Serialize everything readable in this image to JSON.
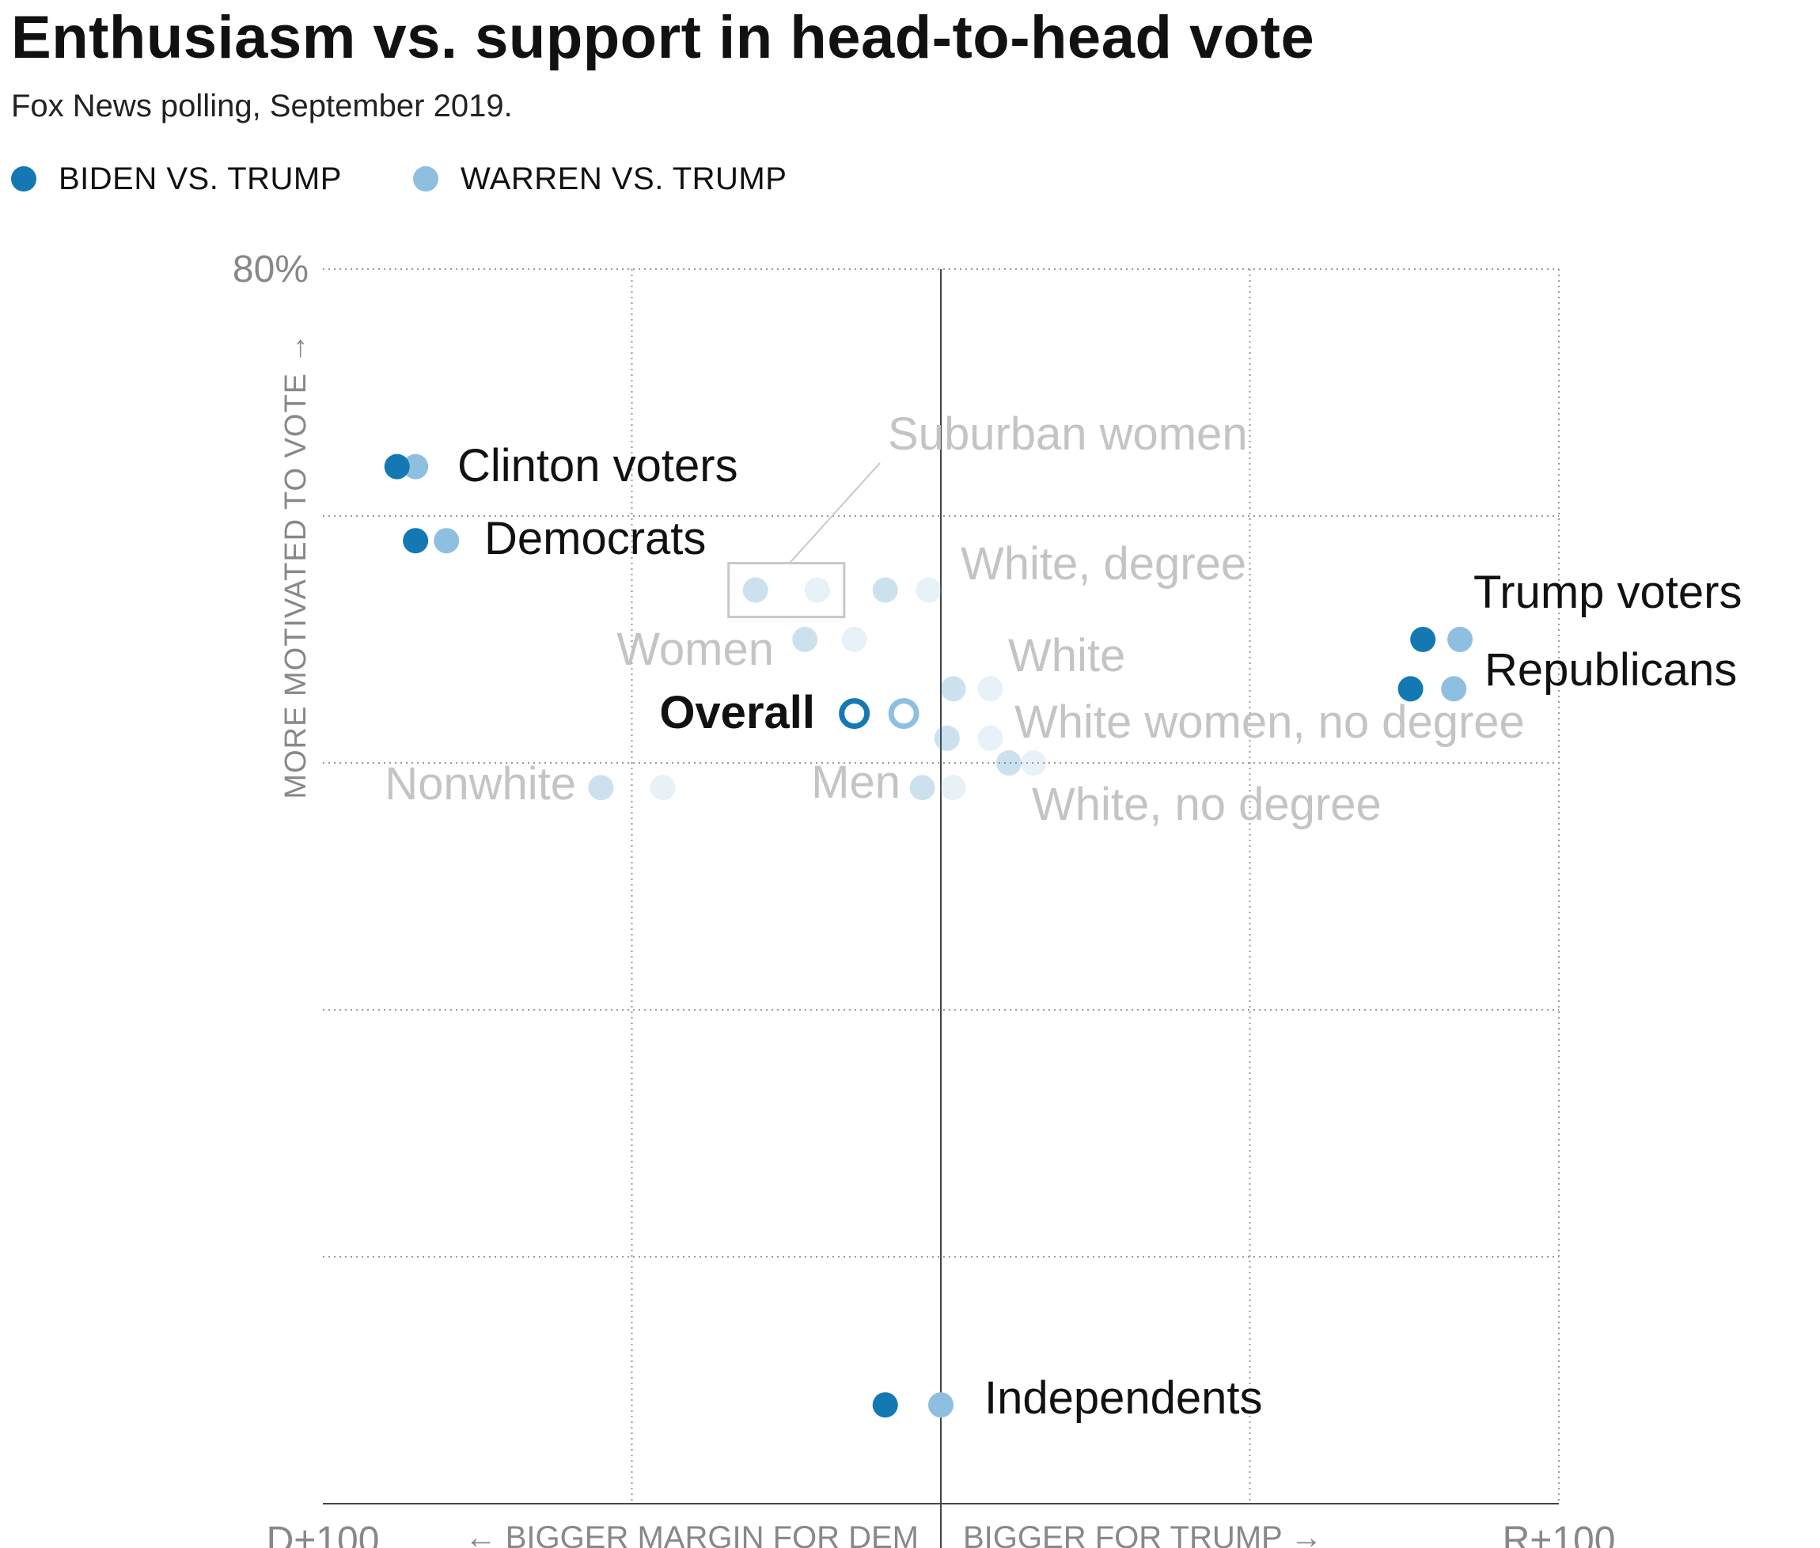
{
  "title": "Enthusiasm vs. support in head-to-head vote",
  "subtitle": "Fox News polling, September 2019.",
  "legend": [
    {
      "label": "BIDEN VS. TRUMP",
      "color": "#1479b3"
    },
    {
      "label": "WARREN VS. TRUMP",
      "color": "#8fbfe0"
    }
  ],
  "colors": {
    "biden": "#1479b3",
    "warren": "#8fbfe0",
    "faded_text": "#c4c4c4",
    "axis_text": "#888888"
  },
  "chart_data": {
    "type": "scatter",
    "x_range": [
      -100,
      100
    ],
    "y_range": [
      30,
      80
    ],
    "x_tick_labels": [
      "D+100",
      "R+100"
    ],
    "y_tick_labels": [
      "80%"
    ],
    "xlabel_left": "← BIGGER MARGIN FOR DEM",
    "xlabel_right": "BIGGER FOR TRUMP →",
    "ylabel": "MORE MOTIVATED TO VOTE →",
    "grid": true,
    "series": [
      {
        "name": "BIDEN VS. TRUMP"
      },
      {
        "name": "WARREN VS. TRUMP"
      }
    ],
    "groups": [
      {
        "label": "Clinton voters",
        "emphasis": "strong",
        "biden": [
          -88,
          72
        ],
        "warren": [
          -85,
          72
        ]
      },
      {
        "label": "Democrats",
        "emphasis": "strong",
        "biden": [
          -85,
          69
        ],
        "warren": [
          -80,
          69
        ]
      },
      {
        "label": "Suburban women",
        "emphasis": "faded",
        "biden": [
          -30,
          67
        ],
        "warren": [
          -20,
          67
        ]
      },
      {
        "label": "White, degree",
        "emphasis": "faded",
        "biden": [
          -9,
          67
        ],
        "warren": [
          -2,
          67
        ]
      },
      {
        "label": "Women",
        "emphasis": "faded",
        "biden": [
          -22,
          65
        ],
        "warren": [
          -14,
          65
        ]
      },
      {
        "label": "Overall",
        "emphasis": "key",
        "biden": [
          -14,
          62
        ],
        "warren": [
          -6,
          62
        ]
      },
      {
        "label": "White",
        "emphasis": "faded",
        "biden": [
          2,
          63
        ],
        "warren": [
          8,
          63
        ]
      },
      {
        "label": "White women, no degree",
        "emphasis": "faded",
        "biden": [
          1,
          61
        ],
        "warren": [
          8,
          61
        ]
      },
      {
        "label": "White, no degree",
        "emphasis": "faded",
        "biden": [
          11,
          60
        ],
        "warren": [
          15,
          60
        ]
      },
      {
        "label": "Nonwhite",
        "emphasis": "faded",
        "biden": [
          -55,
          59
        ],
        "warren": [
          -45,
          59
        ]
      },
      {
        "label": "Men",
        "emphasis": "faded",
        "biden": [
          -3,
          59
        ],
        "warren": [
          2,
          59
        ]
      },
      {
        "label": "Trump voters",
        "emphasis": "strong",
        "biden": [
          78,
          65
        ],
        "warren": [
          84,
          65
        ]
      },
      {
        "label": "Republicans",
        "emphasis": "strong",
        "biden": [
          76,
          63
        ],
        "warren": [
          83,
          63
        ]
      },
      {
        "label": "Independents",
        "emphasis": "strong",
        "biden": [
          -9,
          34
        ],
        "warren": [
          0,
          34
        ]
      }
    ]
  }
}
